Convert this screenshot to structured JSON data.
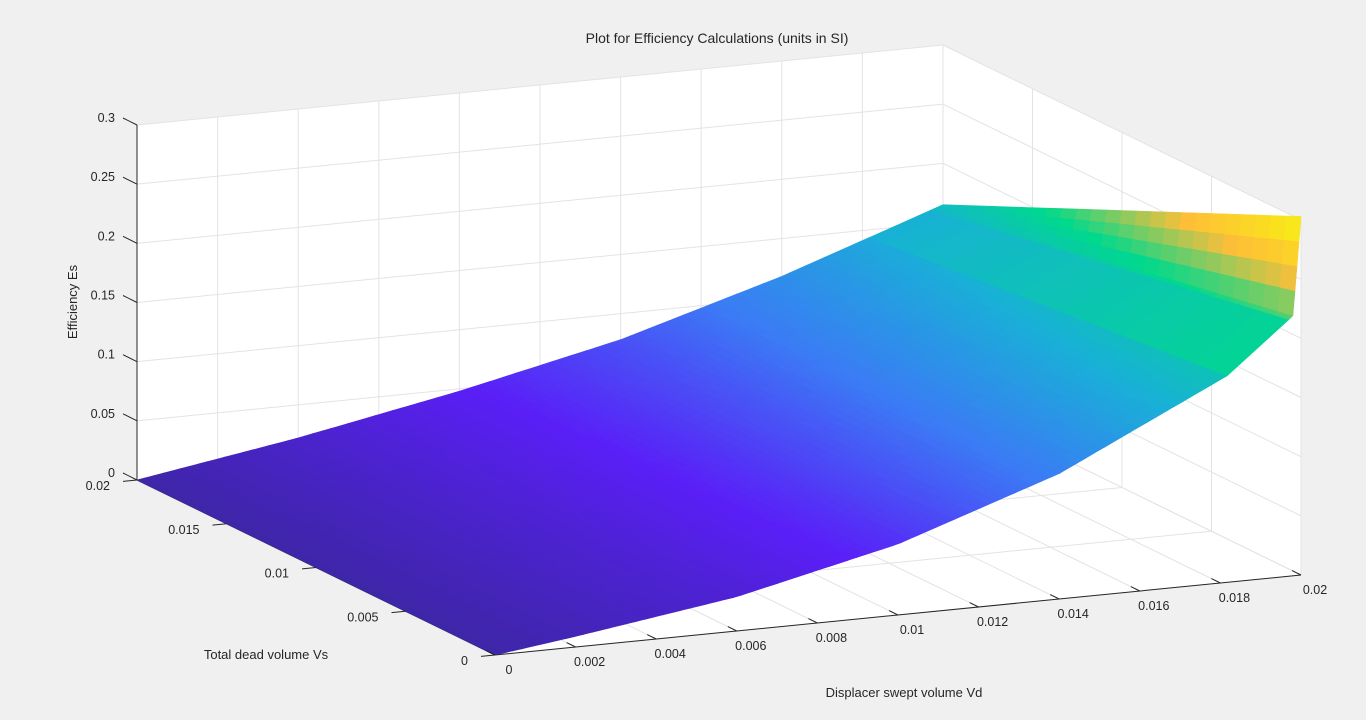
{
  "chart_data": {
    "type": "surface",
    "title": "Plot for Efficiency Calculations (units in SI)",
    "xlabel": "Displacer swept volume Vd",
    "ylabel": "Total dead volume Vs",
    "zlabel": "Efficiency Es",
    "xlim": [
      0,
      0.02
    ],
    "ylim": [
      0,
      0.02
    ],
    "zlim": [
      0,
      0.3
    ],
    "x_ticks": [
      "0",
      "0.002",
      "0.004",
      "0.006",
      "0.008",
      "0.01",
      "0.012",
      "0.014",
      "0.016",
      "0.018",
      "0.02"
    ],
    "y_ticks": [
      "0",
      "0.005",
      "0.01",
      "0.015",
      "0.02"
    ],
    "z_ticks": [
      "0",
      "0.05",
      "0.1",
      "0.15",
      "0.2",
      "0.25",
      "0.3"
    ],
    "grid": true,
    "colormap": "parula",
    "colormap_stops": [
      "#3e26a8",
      "#5a1ff7",
      "#3b7bf5",
      "#18b1d6",
      "#00d98c",
      "#ffbe38",
      "#f5f50f"
    ],
    "surface": {
      "x_domain": [
        0,
        0.02
      ],
      "y_domain": [
        0,
        0.02
      ],
      "corner_values": {
        "x0_y0": 0.0,
        "x0_y002": 0.0,
        "x002_y0": 0.303,
        "x002_y002": 0.165
      },
      "profile_at_y0": [
        [
          0,
          0.0
        ],
        [
          0.002,
          0.009
        ],
        [
          0.006,
          0.029
        ],
        [
          0.01,
          0.06
        ],
        [
          0.014,
          0.106
        ],
        [
          0.0185,
          0.18
        ],
        [
          0.0198,
          0.22
        ],
        [
          0.02,
          0.303
        ]
      ],
      "profile_at_y002": [
        [
          0,
          0.0
        ],
        [
          0.004,
          0.022
        ],
        [
          0.008,
          0.048
        ],
        [
          0.012,
          0.078
        ],
        [
          0.016,
          0.118
        ],
        [
          0.02,
          0.165
        ]
      ]
    }
  }
}
